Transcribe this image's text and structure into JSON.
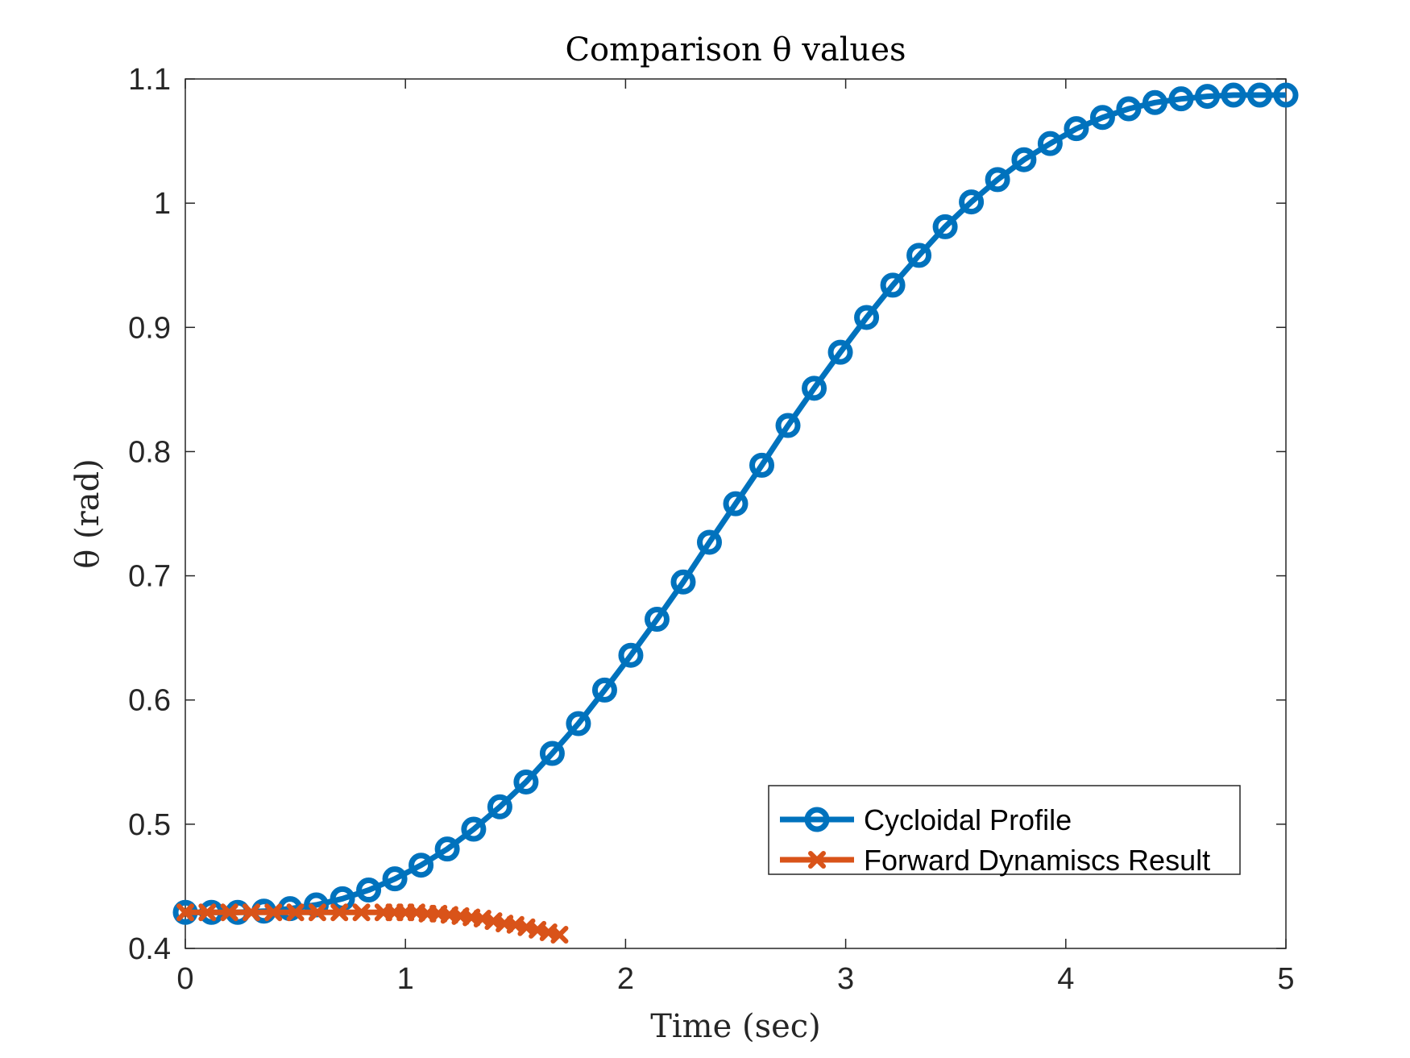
{
  "chart_data": {
    "type": "line",
    "title": "Comparison θ values",
    "xlabel": "Time (sec)",
    "ylabel": "θ (rad)",
    "xlim": [
      0,
      5
    ],
    "ylim": [
      0.4,
      1.1
    ],
    "xticks": [
      0,
      1,
      2,
      3,
      4,
      5
    ],
    "yticks": [
      0.4,
      0.5,
      0.6,
      0.7,
      0.8,
      0.9,
      1.0,
      1.1
    ],
    "xtick_labels": [
      "0",
      "1",
      "2",
      "3",
      "4",
      "5"
    ],
    "ytick_labels": [
      "0.4",
      "0.5",
      "0.6",
      "0.7",
      "0.8",
      "0.9",
      "1",
      "1.1"
    ],
    "grid": false,
    "legend_position": "bottom-right",
    "series": [
      {
        "name": "Cycloidal Profile",
        "color": "#0072BD",
        "marker": "circle",
        "x": [
          0,
          0.119,
          0.238,
          0.357,
          0.476,
          0.595,
          0.714,
          0.833,
          0.952,
          1.071,
          1.19,
          1.31,
          1.429,
          1.548,
          1.667,
          1.786,
          1.905,
          2.024,
          2.143,
          2.262,
          2.381,
          2.5,
          2.619,
          2.738,
          2.857,
          2.976,
          3.095,
          3.214,
          3.333,
          3.452,
          3.571,
          3.69,
          3.81,
          3.929,
          4.048,
          4.167,
          4.286,
          4.405,
          4.524,
          4.643,
          4.762,
          4.881,
          5.0
        ],
        "y": [
          0.429,
          0.429,
          0.429,
          0.43,
          0.432,
          0.435,
          0.44,
          0.447,
          0.456,
          0.467,
          0.48,
          0.496,
          0.514,
          0.534,
          0.557,
          0.581,
          0.608,
          0.636,
          0.665,
          0.695,
          0.727,
          0.758,
          0.789,
          0.821,
          0.851,
          0.88,
          0.908,
          0.934,
          0.958,
          0.981,
          1.001,
          1.019,
          1.035,
          1.048,
          1.06,
          1.069,
          1.076,
          1.081,
          1.084,
          1.086,
          1.087,
          1.087,
          1.087
        ]
      },
      {
        "name": "Forward Dynamiscs Result",
        "color": "#D95319",
        "marker": "x",
        "x": [
          0,
          0.1,
          0.2,
          0.3,
          0.4,
          0.5,
          0.6,
          0.7,
          0.8,
          0.9,
          0.95,
          1.0,
          1.05,
          1.1,
          1.15,
          1.2,
          1.25,
          1.3,
          1.35,
          1.4,
          1.45,
          1.5,
          1.55,
          1.6,
          1.65,
          1.7
        ],
        "y": [
          0.429,
          0.429,
          0.429,
          0.429,
          0.429,
          0.429,
          0.429,
          0.429,
          0.429,
          0.429,
          0.429,
          0.429,
          0.429,
          0.428,
          0.428,
          0.427,
          0.426,
          0.425,
          0.424,
          0.422,
          0.42,
          0.419,
          0.417,
          0.415,
          0.413,
          0.411
        ]
      }
    ]
  }
}
